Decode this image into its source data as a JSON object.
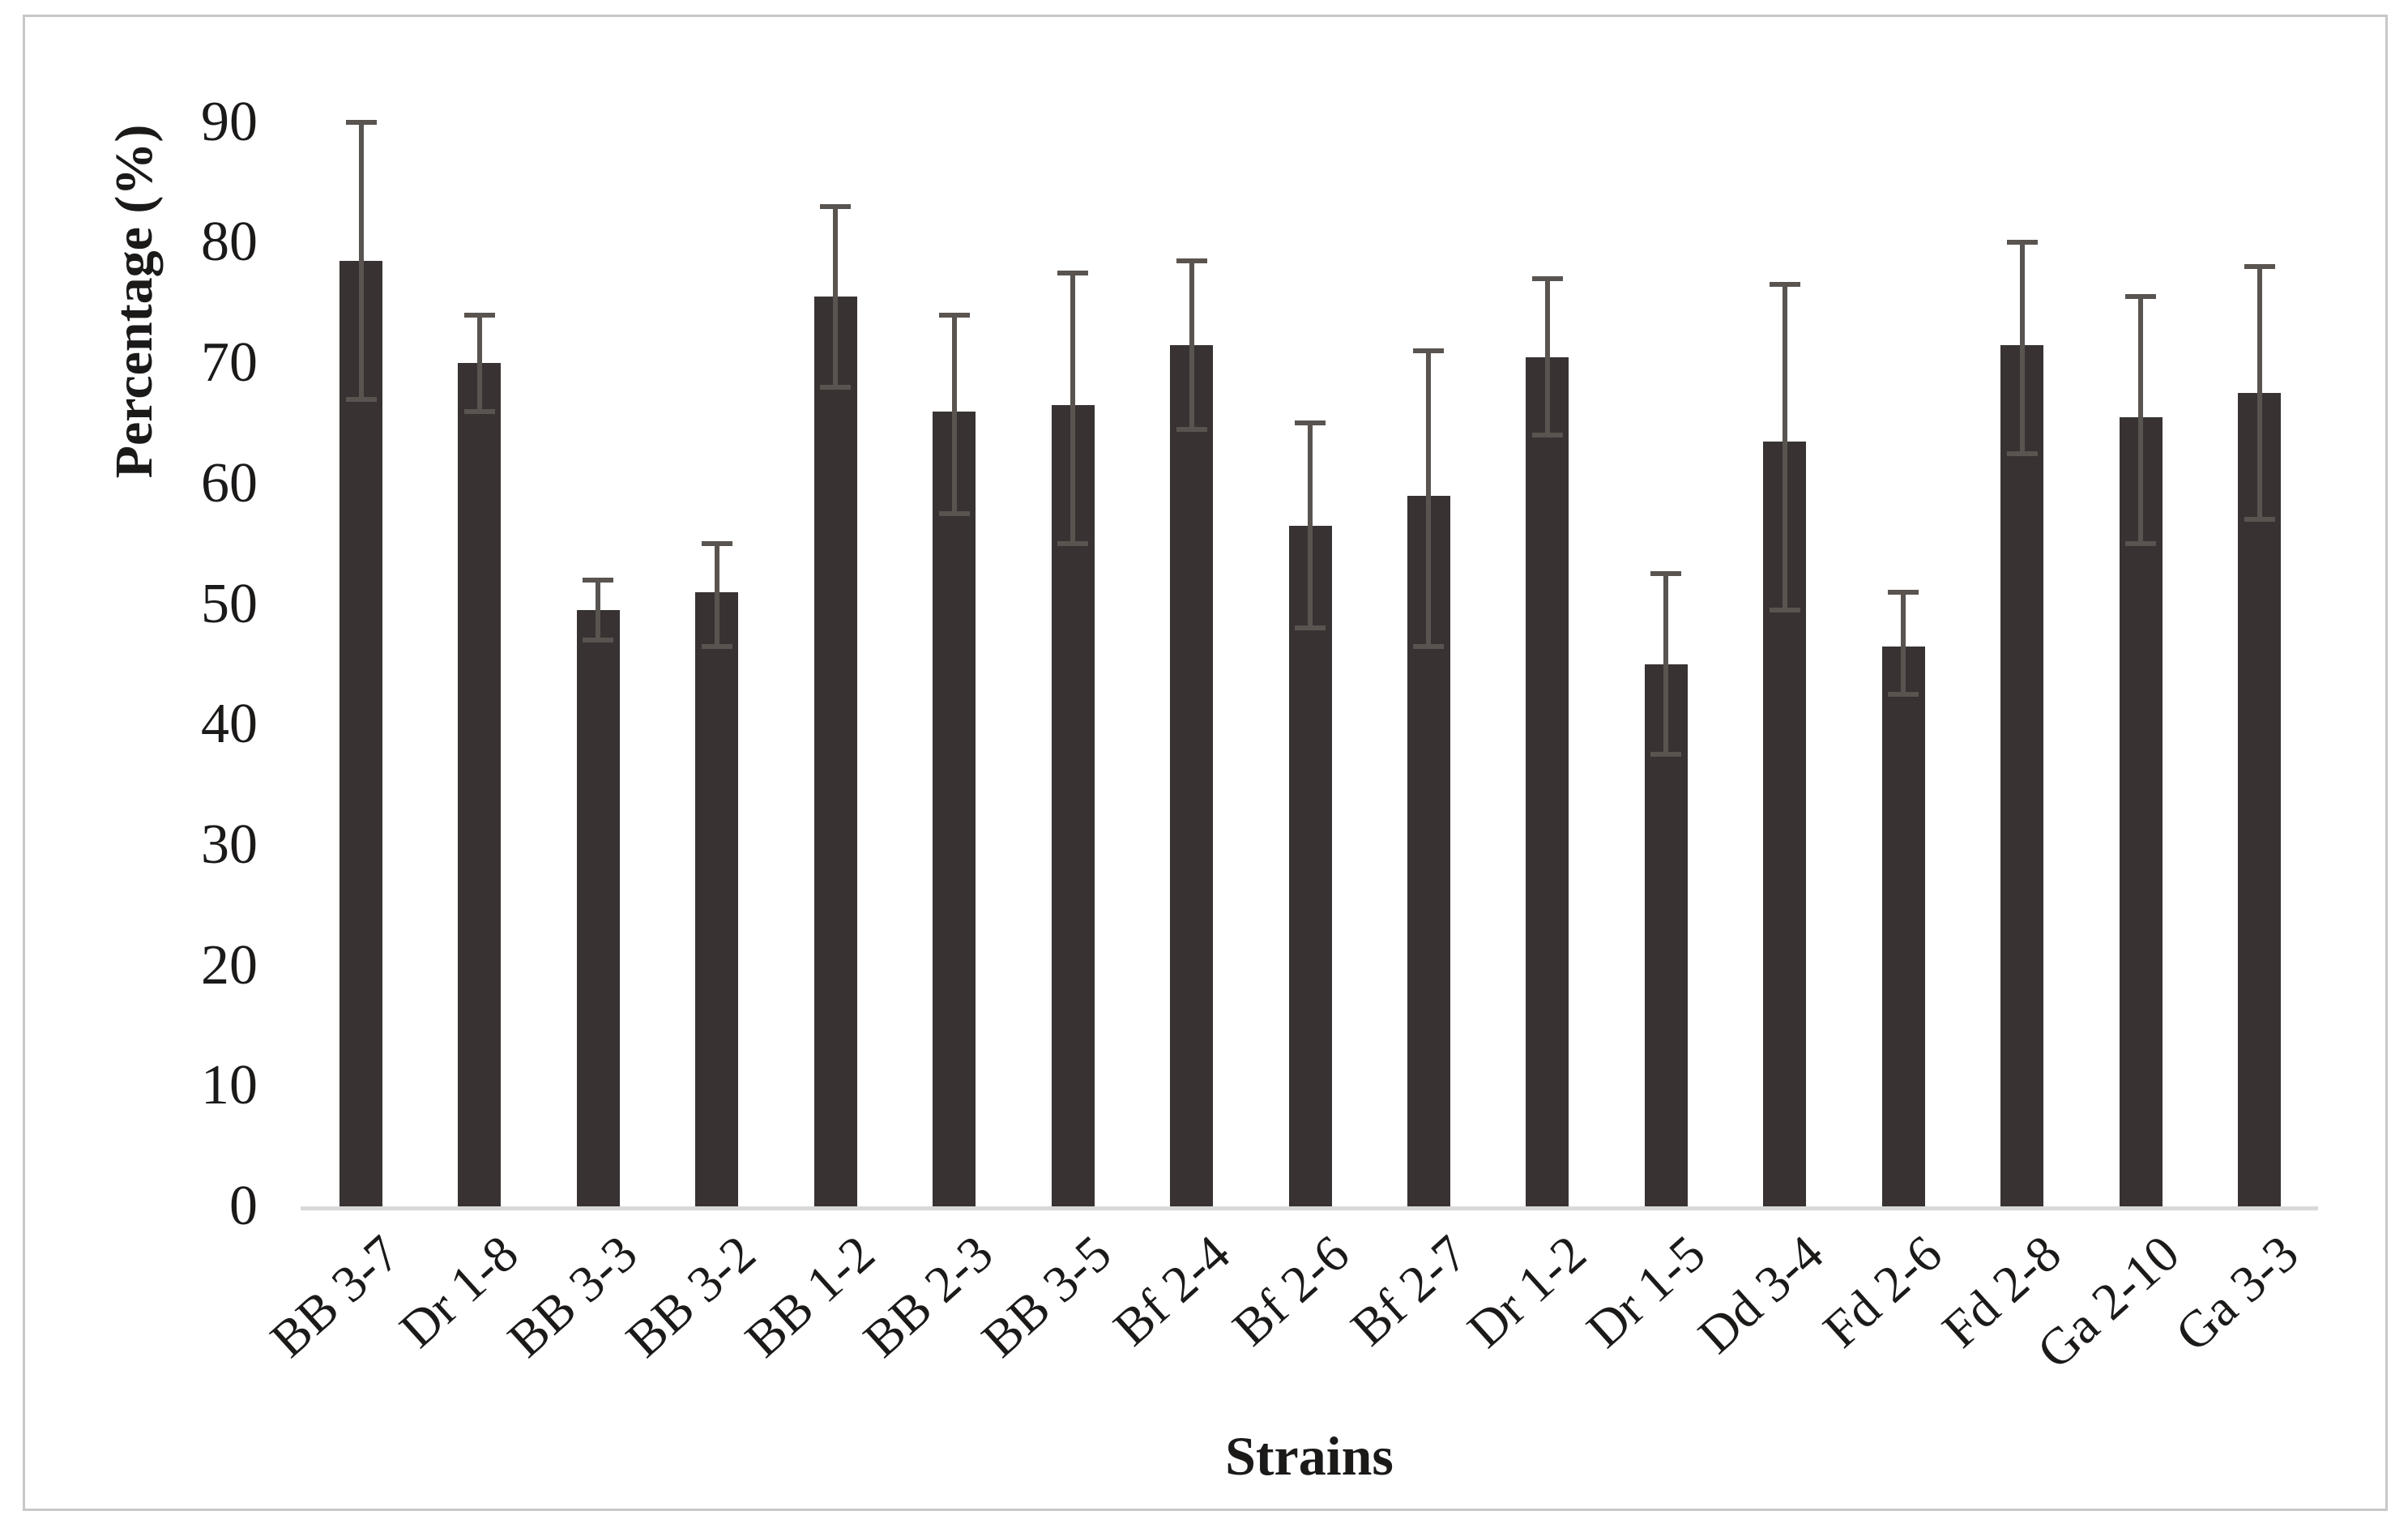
{
  "chart_data": {
    "type": "bar",
    "title": "",
    "xlabel": "Strains",
    "ylabel": "Percentage (%)",
    "categories": [
      "BB 3-7",
      "Dr 1-8",
      "BB 3-3",
      "BB 3-2",
      "BB 1-2",
      "BB 2-3",
      "BB 3-5",
      "Bf 2-4",
      "Bf 2-6",
      "Bf 2-7",
      "Dr 1-2",
      "Dr 1-5",
      "Dd 3-4",
      "Fd 2-6",
      "Fd 2-8",
      "Ga 2-10",
      "Ga 3-3"
    ],
    "values": [
      78.5,
      70,
      49.5,
      51,
      75.5,
      66,
      66.5,
      71.5,
      56.5,
      59,
      70.5,
      45,
      63.5,
      46.5,
      71.5,
      65.5,
      67.5
    ],
    "error_low": [
      67,
      66,
      47,
      46.5,
      68,
      57.5,
      55,
      64.5,
      48,
      46.5,
      64,
      37.5,
      49.5,
      42.5,
      62.5,
      55,
      57
    ],
    "error_high": [
      90,
      74,
      52,
      55,
      83,
      74,
      77.5,
      78.5,
      65,
      71,
      77,
      52.5,
      76.5,
      51,
      80,
      75.5,
      78
    ],
    "yticks": [
      0,
      10,
      20,
      30,
      40,
      50,
      60,
      70,
      80,
      90
    ],
    "ylim": [
      0,
      90
    ],
    "grid": false,
    "legend": null,
    "bar_color": "#383232",
    "error_bar_color": "#595450",
    "axis_line_color": "#d9d9d9",
    "frame_color": "#c8c8c8",
    "text_color": "#1c1a19"
  }
}
